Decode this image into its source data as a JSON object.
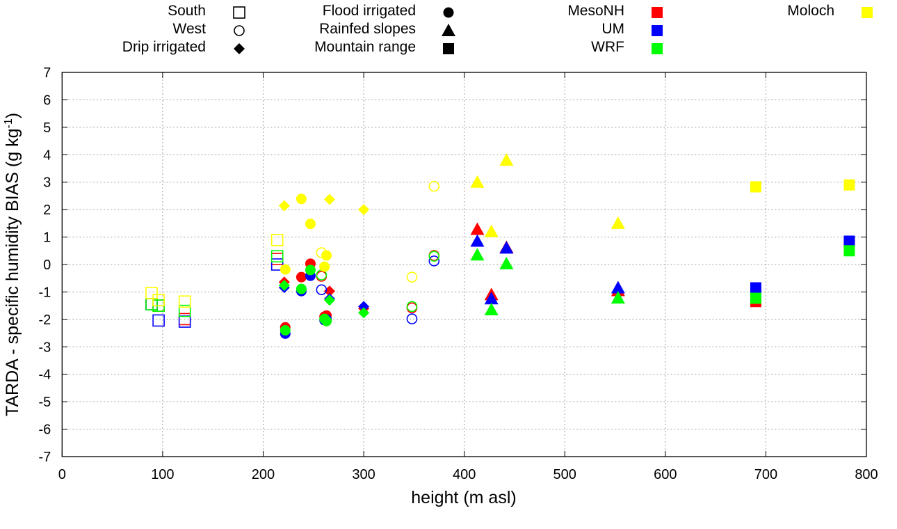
{
  "chart_data": {
    "type": "scatter",
    "xlabel": "height (m asl)",
    "ylabel": {
      "main": "TARDA - specific humidity BIAS (g kg",
      "sup": "-1",
      "end": ")"
    },
    "xlim": [
      0,
      800
    ],
    "ylim": [
      -7,
      7
    ],
    "xticks": [
      0,
      100,
      200,
      300,
      400,
      500,
      600,
      700,
      800
    ],
    "yticks": [
      7,
      6,
      5,
      4,
      3,
      2,
      1,
      0,
      -1,
      -2,
      -3,
      -4,
      -5,
      -6,
      -7
    ],
    "grid": true,
    "legend_placement": "top",
    "categories": [
      {
        "key": "south",
        "label": "South",
        "marker": "square-open"
      },
      {
        "key": "west",
        "label": "West",
        "marker": "circle-open"
      },
      {
        "key": "drip",
        "label": "Drip irrigated",
        "marker": "diamond"
      },
      {
        "key": "flood",
        "label": "Flood irrigated",
        "marker": "circle"
      },
      {
        "key": "rainfed",
        "label": "Rainfed slopes",
        "marker": "triangle"
      },
      {
        "key": "mountain",
        "label": "Mountain range",
        "marker": "square"
      }
    ],
    "models": [
      {
        "key": "mesonh",
        "label": "MesoNH",
        "color": "#ff0000"
      },
      {
        "key": "um",
        "label": "UM",
        "color": "#0000ff"
      },
      {
        "key": "wrf",
        "label": "WRF",
        "color": "#00ff00"
      },
      {
        "key": "moloch",
        "label": "Moloch",
        "color": "#ffff00"
      }
    ],
    "points": [
      {
        "cat": "south",
        "x": 89,
        "mesonh": -1.45,
        "um": -1.45,
        "wrf": -1.45,
        "moloch": -1.04
      },
      {
        "cat": "south",
        "x": 96,
        "mesonh": -1.5,
        "um": -2.04,
        "wrf": -1.5,
        "moloch": -1.3
      },
      {
        "cat": "south",
        "x": 122,
        "mesonh": -1.99,
        "um": -2.08,
        "wrf": -1.69,
        "moloch": -1.35
      },
      {
        "cat": "south",
        "x": 214,
        "mesonh": 0.2,
        "um": 0.0,
        "wrf": 0.3,
        "moloch": 0.89
      },
      {
        "cat": "west",
        "x": 258,
        "mesonh": -0.43,
        "um": -0.92,
        "wrf": -0.38,
        "moloch": 0.43
      },
      {
        "cat": "west",
        "x": 348,
        "mesonh": -1.58,
        "um": -1.98,
        "wrf": -1.53,
        "moloch": -0.46
      },
      {
        "cat": "west",
        "x": 370,
        "mesonh": 0.33,
        "um": 0.13,
        "wrf": 0.3,
        "moloch": 2.85
      },
      {
        "cat": "drip",
        "x": 221,
        "mesonh": -0.64,
        "um": -0.84,
        "wrf": -0.76,
        "moloch": 2.14
      },
      {
        "cat": "drip",
        "x": 266,
        "mesonh": -0.97,
        "um": -1.25,
        "wrf": -1.3,
        "moloch": 2.37
      },
      {
        "cat": "drip",
        "x": 300,
        "mesonh": -1.6,
        "um": -1.53,
        "wrf": -1.76,
        "moloch": 2.0
      },
      {
        "cat": "flood",
        "x": 222,
        "mesonh": -2.29,
        "um": -2.52,
        "wrf": -2.4,
        "moloch": -0.18
      },
      {
        "cat": "flood",
        "x": 238,
        "mesonh": -0.46,
        "um": -0.97,
        "wrf": -0.89,
        "moloch": 2.39
      },
      {
        "cat": "flood",
        "x": 247,
        "mesonh": 0.03,
        "um": -0.41,
        "wrf": -0.2,
        "moloch": 1.48
      },
      {
        "cat": "flood",
        "x": 261,
        "mesonh": -1.9,
        "um": -2.03,
        "wrf": -1.98,
        "moloch": -0.08
      },
      {
        "cat": "flood",
        "x": 263,
        "mesonh": -1.86,
        "um": -2.0,
        "wrf": -2.06,
        "moloch": 0.33
      },
      {
        "cat": "rainfed",
        "x": 413,
        "mesonh": 1.28,
        "um": 0.85,
        "wrf": 0.35,
        "moloch": 3.0
      },
      {
        "cat": "rainfed",
        "x": 427,
        "mesonh": -1.1,
        "um": -1.25,
        "wrf": -1.65,
        "moloch": 1.2
      },
      {
        "cat": "rainfed",
        "x": 442,
        "mesonh": 0.62,
        "um": 0.6,
        "wrf": 0.03,
        "moloch": 3.8
      },
      {
        "cat": "rainfed",
        "x": 553,
        "mesonh": -0.95,
        "um": -0.85,
        "wrf": -1.22,
        "moloch": 1.5
      },
      {
        "cat": "mountain",
        "x": 690,
        "mesonh": -1.35,
        "um": -0.85,
        "wrf": -1.23,
        "moloch": 2.83
      },
      {
        "cat": "mountain",
        "x": 783,
        "mesonh": 0.8,
        "um": 0.85,
        "wrf": 0.5,
        "moloch": 2.9
      }
    ]
  }
}
